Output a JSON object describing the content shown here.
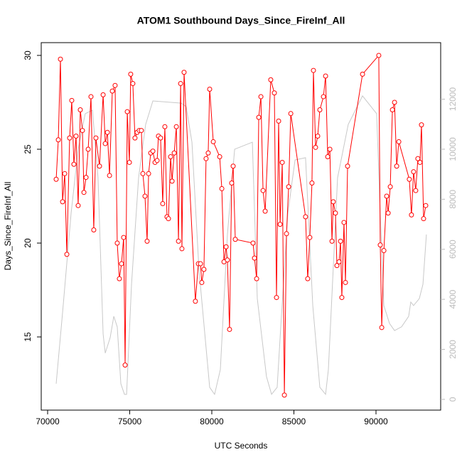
{
  "chart_data": {
    "type": "line",
    "title": "ATOM1 Southbound Days_Since_FireInf_All",
    "x_label": "UTC Seconds",
    "y_label": "Days_Since_FireInf_All",
    "xlim": [
      69610,
      93940
    ],
    "ylim": [
      11.1,
      30.68
    ],
    "y2lim": [
      -430,
      14260
    ],
    "xticks": [
      70000,
      75000,
      80000,
      85000,
      90000
    ],
    "yticks": [
      15,
      20,
      25,
      30
    ],
    "y2ticks": [
      0,
      2000,
      4000,
      6000,
      8000,
      10000,
      12000
    ],
    "series": [
      {
        "color": "#c8c8c8",
        "axis": "y2",
        "markers": false,
        "x": [
          70520,
          70910,
          71430,
          71860,
          72290,
          72730,
          73070,
          73380,
          73510,
          73810,
          74030,
          74240,
          74460,
          74680,
          74810,
          75110,
          75540,
          75970,
          76410,
          78140,
          78440,
          78790,
          79220,
          79870,
          80170,
          80520,
          80950,
          81390,
          82470,
          82770,
          83330,
          83640,
          83980,
          84200,
          84630,
          85070,
          85710,
          86150,
          86580,
          86930,
          87100,
          87660,
          88310,
          89180,
          90040,
          90260,
          90480,
          90820,
          91130,
          91560,
          91990,
          92120,
          92290,
          92640,
          92860,
          93070
        ],
        "values": [
          625,
          3470,
          7440,
          10000,
          11420,
          11560,
          8860,
          2610,
          1850,
          2470,
          3320,
          2900,
          625,
          200,
          200,
          4600,
          8860,
          10990,
          11930,
          11840,
          11700,
          10280,
          5170,
          480,
          200,
          1190,
          6590,
          10000,
          10280,
          4030,
          910,
          200,
          480,
          2900,
          7440,
          9570,
          9660,
          3750,
          480,
          200,
          1190,
          8860,
          10990,
          12130,
          11420,
          7440,
          3750,
          3040,
          2750,
          2900,
          3320,
          3890,
          3750,
          4030,
          4600,
          6590
        ]
      },
      {
        "color": "#ff0000",
        "markers": true,
        "x": [
          70520,
          70650,
          70780,
          70910,
          71040,
          71170,
          71340,
          71470,
          71600,
          71730,
          71860,
          71990,
          72120,
          72210,
          72340,
          72470,
          72640,
          72810,
          72940,
          73160,
          73380,
          73510,
          73640,
          73770,
          73940,
          74110,
          74240,
          74370,
          74500,
          74630,
          74720,
          74850,
          74980,
          75060,
          75190,
          75320,
          75450,
          75580,
          75710,
          75800,
          75930,
          76060,
          76150,
          76280,
          76410,
          76540,
          76670,
          76750,
          76880,
          77010,
          77140,
          77270,
          77360,
          77490,
          77580,
          77710,
          77840,
          77970,
          78100,
          78180,
          78310,
          79000,
          79180,
          79310,
          79390,
          79520,
          79650,
          79780,
          79870,
          80090,
          80480,
          80610,
          80740,
          80870,
          80950,
          81080,
          81210,
          81300,
          81430,
          82510,
          82600,
          82730,
          82860,
          82990,
          83120,
          83250,
          83590,
          83810,
          83940,
          84070,
          84160,
          84290,
          84420,
          84550,
          84680,
          84810,
          85710,
          85840,
          85970,
          86100,
          86190,
          86320,
          86450,
          86580,
          86800,
          86930,
          87060,
          87190,
          87320,
          87400,
          87530,
          87620,
          87750,
          87840,
          87920,
          88050,
          88140,
          88270,
          89180,
          90170,
          90260,
          90350,
          90480,
          90650,
          90740,
          90870,
          91000,
          91130,
          91260,
          91390,
          92030,
          92160,
          92290,
          92420,
          92550,
          92680,
          92770,
          92900,
          93030
        ],
        "values": [
          23.4,
          25.5,
          29.8,
          22.2,
          23.7,
          19.4,
          25.6,
          27.6,
          24.2,
          25.7,
          22.0,
          27.1,
          26.0,
          22.7,
          23.5,
          25.0,
          27.8,
          20.7,
          25.6,
          24.1,
          27.9,
          25.3,
          25.9,
          23.6,
          28.1,
          28.4,
          20.0,
          18.1,
          18.9,
          20.3,
          13.5,
          27.0,
          24.3,
          29.0,
          28.5,
          25.6,
          25.9,
          26.0,
          26.0,
          23.7,
          22.5,
          20.1,
          23.7,
          24.8,
          24.9,
          24.3,
          24.4,
          25.7,
          25.6,
          22.1,
          26.2,
          21.4,
          21.3,
          24.6,
          23.3,
          24.8,
          26.2,
          20.1,
          28.5,
          19.7,
          29.1,
          16.9,
          18.9,
          18.9,
          17.9,
          18.6,
          24.5,
          24.8,
          28.2,
          25.4,
          24.6,
          22.9,
          19.0,
          19.8,
          19.1,
          15.4,
          23.2,
          24.1,
          20.2,
          20.0,
          19.2,
          18.1,
          26.7,
          27.8,
          22.8,
          21.7,
          28.7,
          28.0,
          17.1,
          26.5,
          21.0,
          24.3,
          11.9,
          20.5,
          23.0,
          26.9,
          21.4,
          18.1,
          20.3,
          23.2,
          29.2,
          25.1,
          25.7,
          27.1,
          27.8,
          28.9,
          24.6,
          25.0,
          20.1,
          22.2,
          21.6,
          18.8,
          19.0,
          20.1,
          17.1,
          21.1,
          17.9,
          24.1,
          29.0,
          30.0,
          19.9,
          15.5,
          19.6,
          22.5,
          21.6,
          23.0,
          27.1,
          27.5,
          24.1,
          25.4,
          23.4,
          21.5,
          23.8,
          22.8,
          24.5,
          24.3,
          26.3,
          21.3,
          22.0
        ]
      }
    ]
  }
}
